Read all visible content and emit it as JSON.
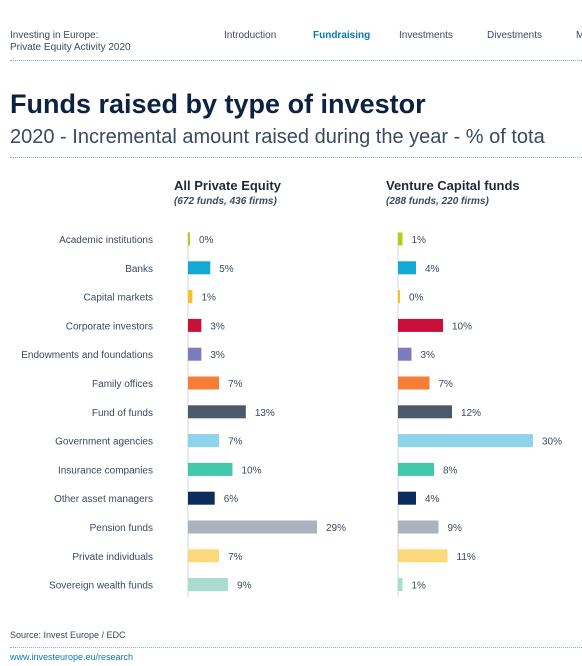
{
  "header": {
    "brand_line1": "Investing in Europe:",
    "brand_line2": "Private Equity Activity 2020",
    "nav": [
      {
        "label": "Introduction",
        "active": false
      },
      {
        "label": "Fundraising",
        "active": true
      },
      {
        "label": "Investments",
        "active": false
      },
      {
        "label": "Divestments",
        "active": false
      },
      {
        "label": "M",
        "active": false
      }
    ]
  },
  "page": {
    "title": "Funds raised by type of investor",
    "subtitle": "2020 - Incremental amount raised during the year - % of tota"
  },
  "chart_data": [
    {
      "type": "bar",
      "orientation": "horizontal",
      "title": "All Private Equity",
      "subtitle": "(672 funds, 436 firms)",
      "categories": [
        "Academic institutions",
        "Banks",
        "Capital markets",
        "Corporate investors",
        "Endowments and foundations",
        "Family offices",
        "Fund of funds",
        "Government agencies",
        "Insurance companies",
        "Other asset managers",
        "Pension funds",
        "Private individuals",
        "Sovereign wealth funds"
      ],
      "values": [
        0,
        5,
        1,
        3,
        3,
        7,
        13,
        7,
        10,
        6,
        29,
        7,
        9
      ],
      "labels": [
        "0%",
        "5%",
        "1%",
        "3%",
        "3%",
        "7%",
        "13%",
        "7%",
        "10%",
        "6%",
        "29%",
        "7%",
        "9%"
      ],
      "unit": "%",
      "xlim": [
        0,
        30
      ]
    },
    {
      "type": "bar",
      "orientation": "horizontal",
      "title": "Venture Capital funds",
      "subtitle": "(288 funds, 220 firms)",
      "categories": [
        "Academic institutions",
        "Banks",
        "Capital markets",
        "Corporate investors",
        "Endowments and foundations",
        "Family offices",
        "Fund of funds",
        "Government agencies",
        "Insurance companies",
        "Other asset managers",
        "Pension funds",
        "Private individuals",
        "Sovereign wealth funds"
      ],
      "values": [
        1,
        4,
        0,
        10,
        3,
        7,
        12,
        30,
        8,
        4,
        9,
        11,
        1
      ],
      "labels": [
        "1%",
        "4%",
        "0%",
        "10%",
        "3%",
        "7%",
        "12%",
        "30%",
        "8%",
        "4%",
        "9%",
        "11%",
        "1%"
      ],
      "unit": "%",
      "xlim": [
        0,
        30
      ]
    }
  ],
  "colors": [
    "#b5cc18",
    "#12a9d6",
    "#f7c12e",
    "#c8103a",
    "#7c7bbf",
    "#f57f36",
    "#4b5a68",
    "#8dd3ea",
    "#43c8ab",
    "#0c2d5c",
    "#aab2bd",
    "#fcd97a",
    "#a8dccc"
  ],
  "footer": {
    "source": "Source: Invest Europe / EDC",
    "link": "www.investeurope.eu/research"
  }
}
